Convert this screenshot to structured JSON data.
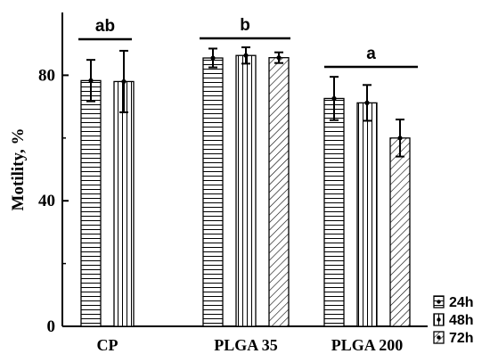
{
  "chart_data": {
    "type": "bar",
    "ylabel": "Motility, %",
    "ylim": [
      0,
      100
    ],
    "yticks": [
      0,
      40,
      80
    ],
    "categories": [
      "CP",
      "PLGA 35",
      "PLGA 200"
    ],
    "series": [
      {
        "name": "24h",
        "pattern": "horizontal",
        "values": [
          78.3,
          85.5,
          72.6
        ],
        "errors": [
          6.6,
          3.0,
          6.9
        ]
      },
      {
        "name": "48h",
        "pattern": "vertical",
        "values": [
          78.0,
          86.3,
          71.2
        ],
        "errors": [
          9.8,
          2.6,
          5.7
        ]
      },
      {
        "name": "72h",
        "pattern": "diagonal",
        "values": [
          null,
          85.6,
          60.0
        ],
        "errors": [
          null,
          1.7,
          5.9
        ]
      }
    ],
    "significance": [
      {
        "category": "CP",
        "label": "ab"
      },
      {
        "category": "PLGA 35",
        "label": "b"
      },
      {
        "category": "PLGA 200",
        "label": "a"
      }
    ],
    "legend_position": "bottom-right"
  },
  "colors": {
    "ink": "#000000",
    "background": "#ffffff"
  }
}
